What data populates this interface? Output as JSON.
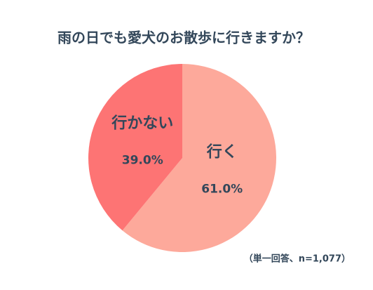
{
  "chart_data": {
    "type": "pie",
    "title": "雨の日でも愛犬のお散歩に行きますか？",
    "categories": [
      "行く",
      "行かない"
    ],
    "values": [
      61.0,
      39.0
    ],
    "value_labels": [
      "61.0%",
      "39.0%"
    ],
    "colors": [
      "#fda99b",
      "#fd7474"
    ],
    "note": "（単一回答、n=1,077）"
  }
}
